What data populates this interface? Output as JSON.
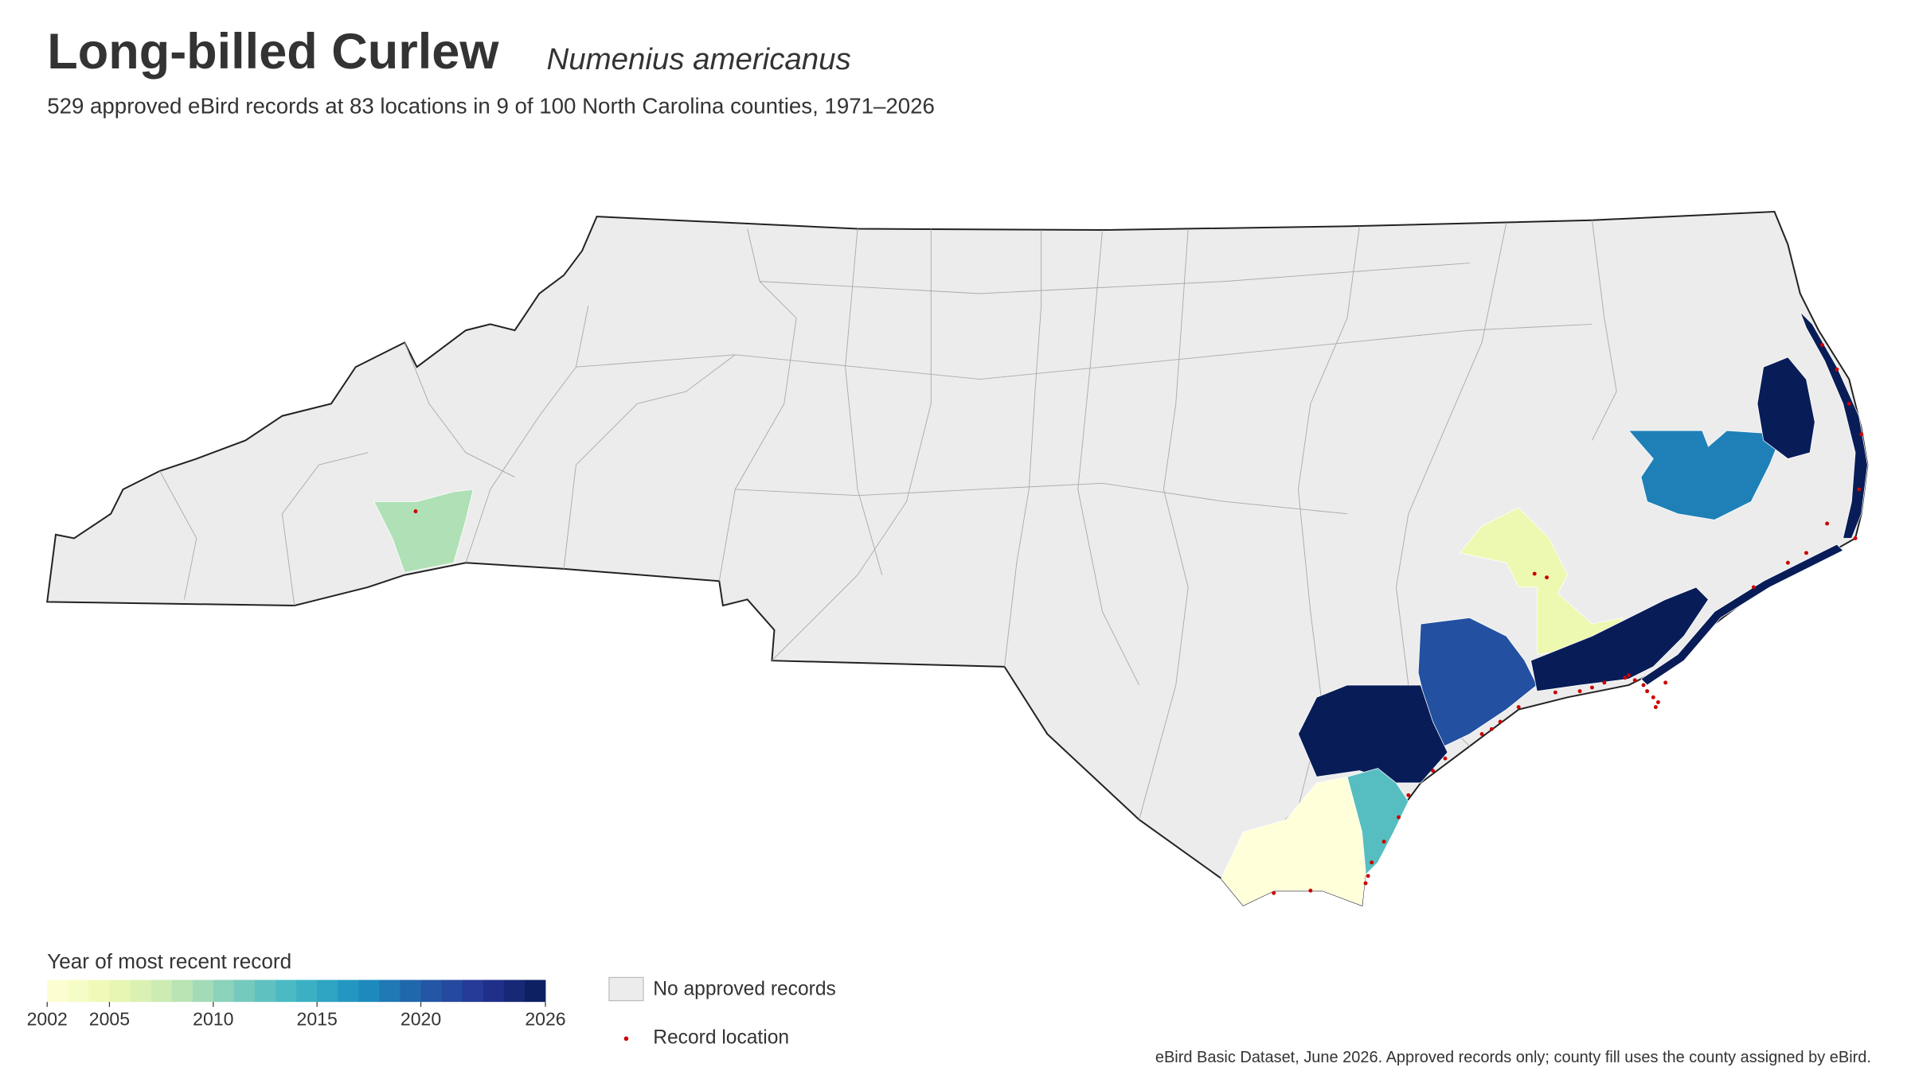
{
  "header": {
    "title": "Long-billed Curlew",
    "species": "Numenius americanus",
    "subtitle": "529 approved eBird records at 83 locations in 9 of 100 North Carolina counties, 1971–2026"
  },
  "chart_data": {
    "type": "choropleth",
    "counties": [
      {
        "year": 2009
      },
      {
        "year": 2005
      },
      {
        "year": 2018
      },
      {
        "year": 2026
      },
      {
        "year": 2021
      },
      {
        "year": 2026
      },
      {
        "year": 2026
      },
      {
        "year": 2013
      },
      {
        "year": 2002
      }
    ],
    "colorbar": {
      "title": "Year of most recent record",
      "lim": [
        2002,
        2026
      ],
      "ticks": [
        2002,
        2005,
        2010,
        2015,
        2020,
        2026
      ],
      "colors": [
        "#ffffd9",
        "#edf8b1",
        "#c7e9b4",
        "#7fcdbb",
        "#41b6c4",
        "#1d91c0",
        "#225ea8",
        "#253494",
        "#081d58"
      ]
    },
    "legend": {
      "no_data": "No approved records",
      "no_data_color": "#ececec",
      "points": "Record location",
      "point_color": "#cc0000"
    }
  },
  "footer": {
    "source": "eBird Basic Dataset, June 2026. Approved records only; county fill uses the county assigned by eBird."
  }
}
